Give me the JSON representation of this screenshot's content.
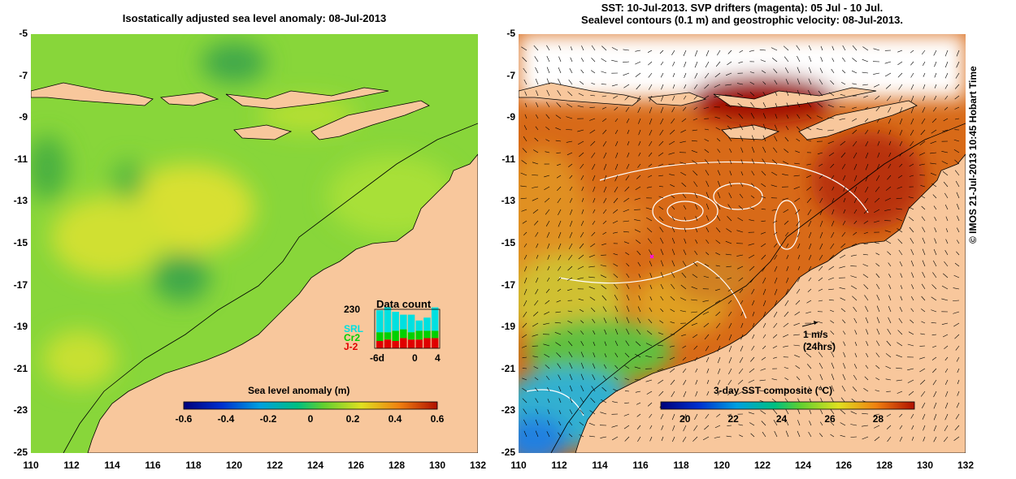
{
  "left_map": {
    "title": "Isostatically adjusted sea level anomaly: 08-Jul-2013",
    "lat_ticks": [
      "-5",
      "-7",
      "-9",
      "-11",
      "-13",
      "-15",
      "-17",
      "-19",
      "-21",
      "-23",
      "-25"
    ],
    "lon_ticks": [
      "110",
      "112",
      "114",
      "116",
      "118",
      "120",
      "122",
      "124",
      "126",
      "128",
      "130",
      "132"
    ],
    "colorbar": {
      "title": "Sea level anomaly (m)",
      "ticks": [
        "-0.6",
        "-0.4",
        "-0.2",
        "0",
        "0.2",
        "0.4",
        "0.6"
      ],
      "range": [
        -0.6,
        0.6
      ]
    },
    "data_count": {
      "title": "Data count",
      "max_label": "230",
      "missions": [
        {
          "name": "SRL",
          "color": "#00e0e0"
        },
        {
          "name": "Cr2",
          "color": "#00d000"
        },
        {
          "name": "J-2",
          "color": "#e00000"
        }
      ],
      "x_ticks": [
        "-6d",
        "0",
        "4"
      ]
    }
  },
  "right_map": {
    "title_lines": [
      "SST: 10-Jul-2013. SVP drifters (magenta): 05 Jul - 10 Jul.",
      "Sealevel contours (0.1 m) and geostrophic velocity: 08-Jul-2013."
    ],
    "lat_ticks": [
      "-5",
      "-7",
      "-9",
      "-11",
      "-13",
      "-15",
      "-17",
      "-19",
      "-21",
      "-23",
      "-25"
    ],
    "lon_ticks": [
      "110",
      "112",
      "114",
      "116",
      "118",
      "120",
      "122",
      "124",
      "126",
      "128",
      "130",
      "132"
    ],
    "velocity_scale": {
      "speed": "1 m/s",
      "duration": "(24hrs)"
    },
    "colorbar": {
      "title": "3-day SST composite (°C)",
      "ticks": [
        "20",
        "22",
        "24",
        "26",
        "28"
      ],
      "range": [
        19,
        29.5
      ]
    }
  },
  "colors": {
    "land": "#f8c79c",
    "ocean_ssh_base": "#8ad83a",
    "sst_warm": "#c84a10"
  },
  "credit": "© IMOS 21-Jul-2013 10:45 Hobart Time"
}
